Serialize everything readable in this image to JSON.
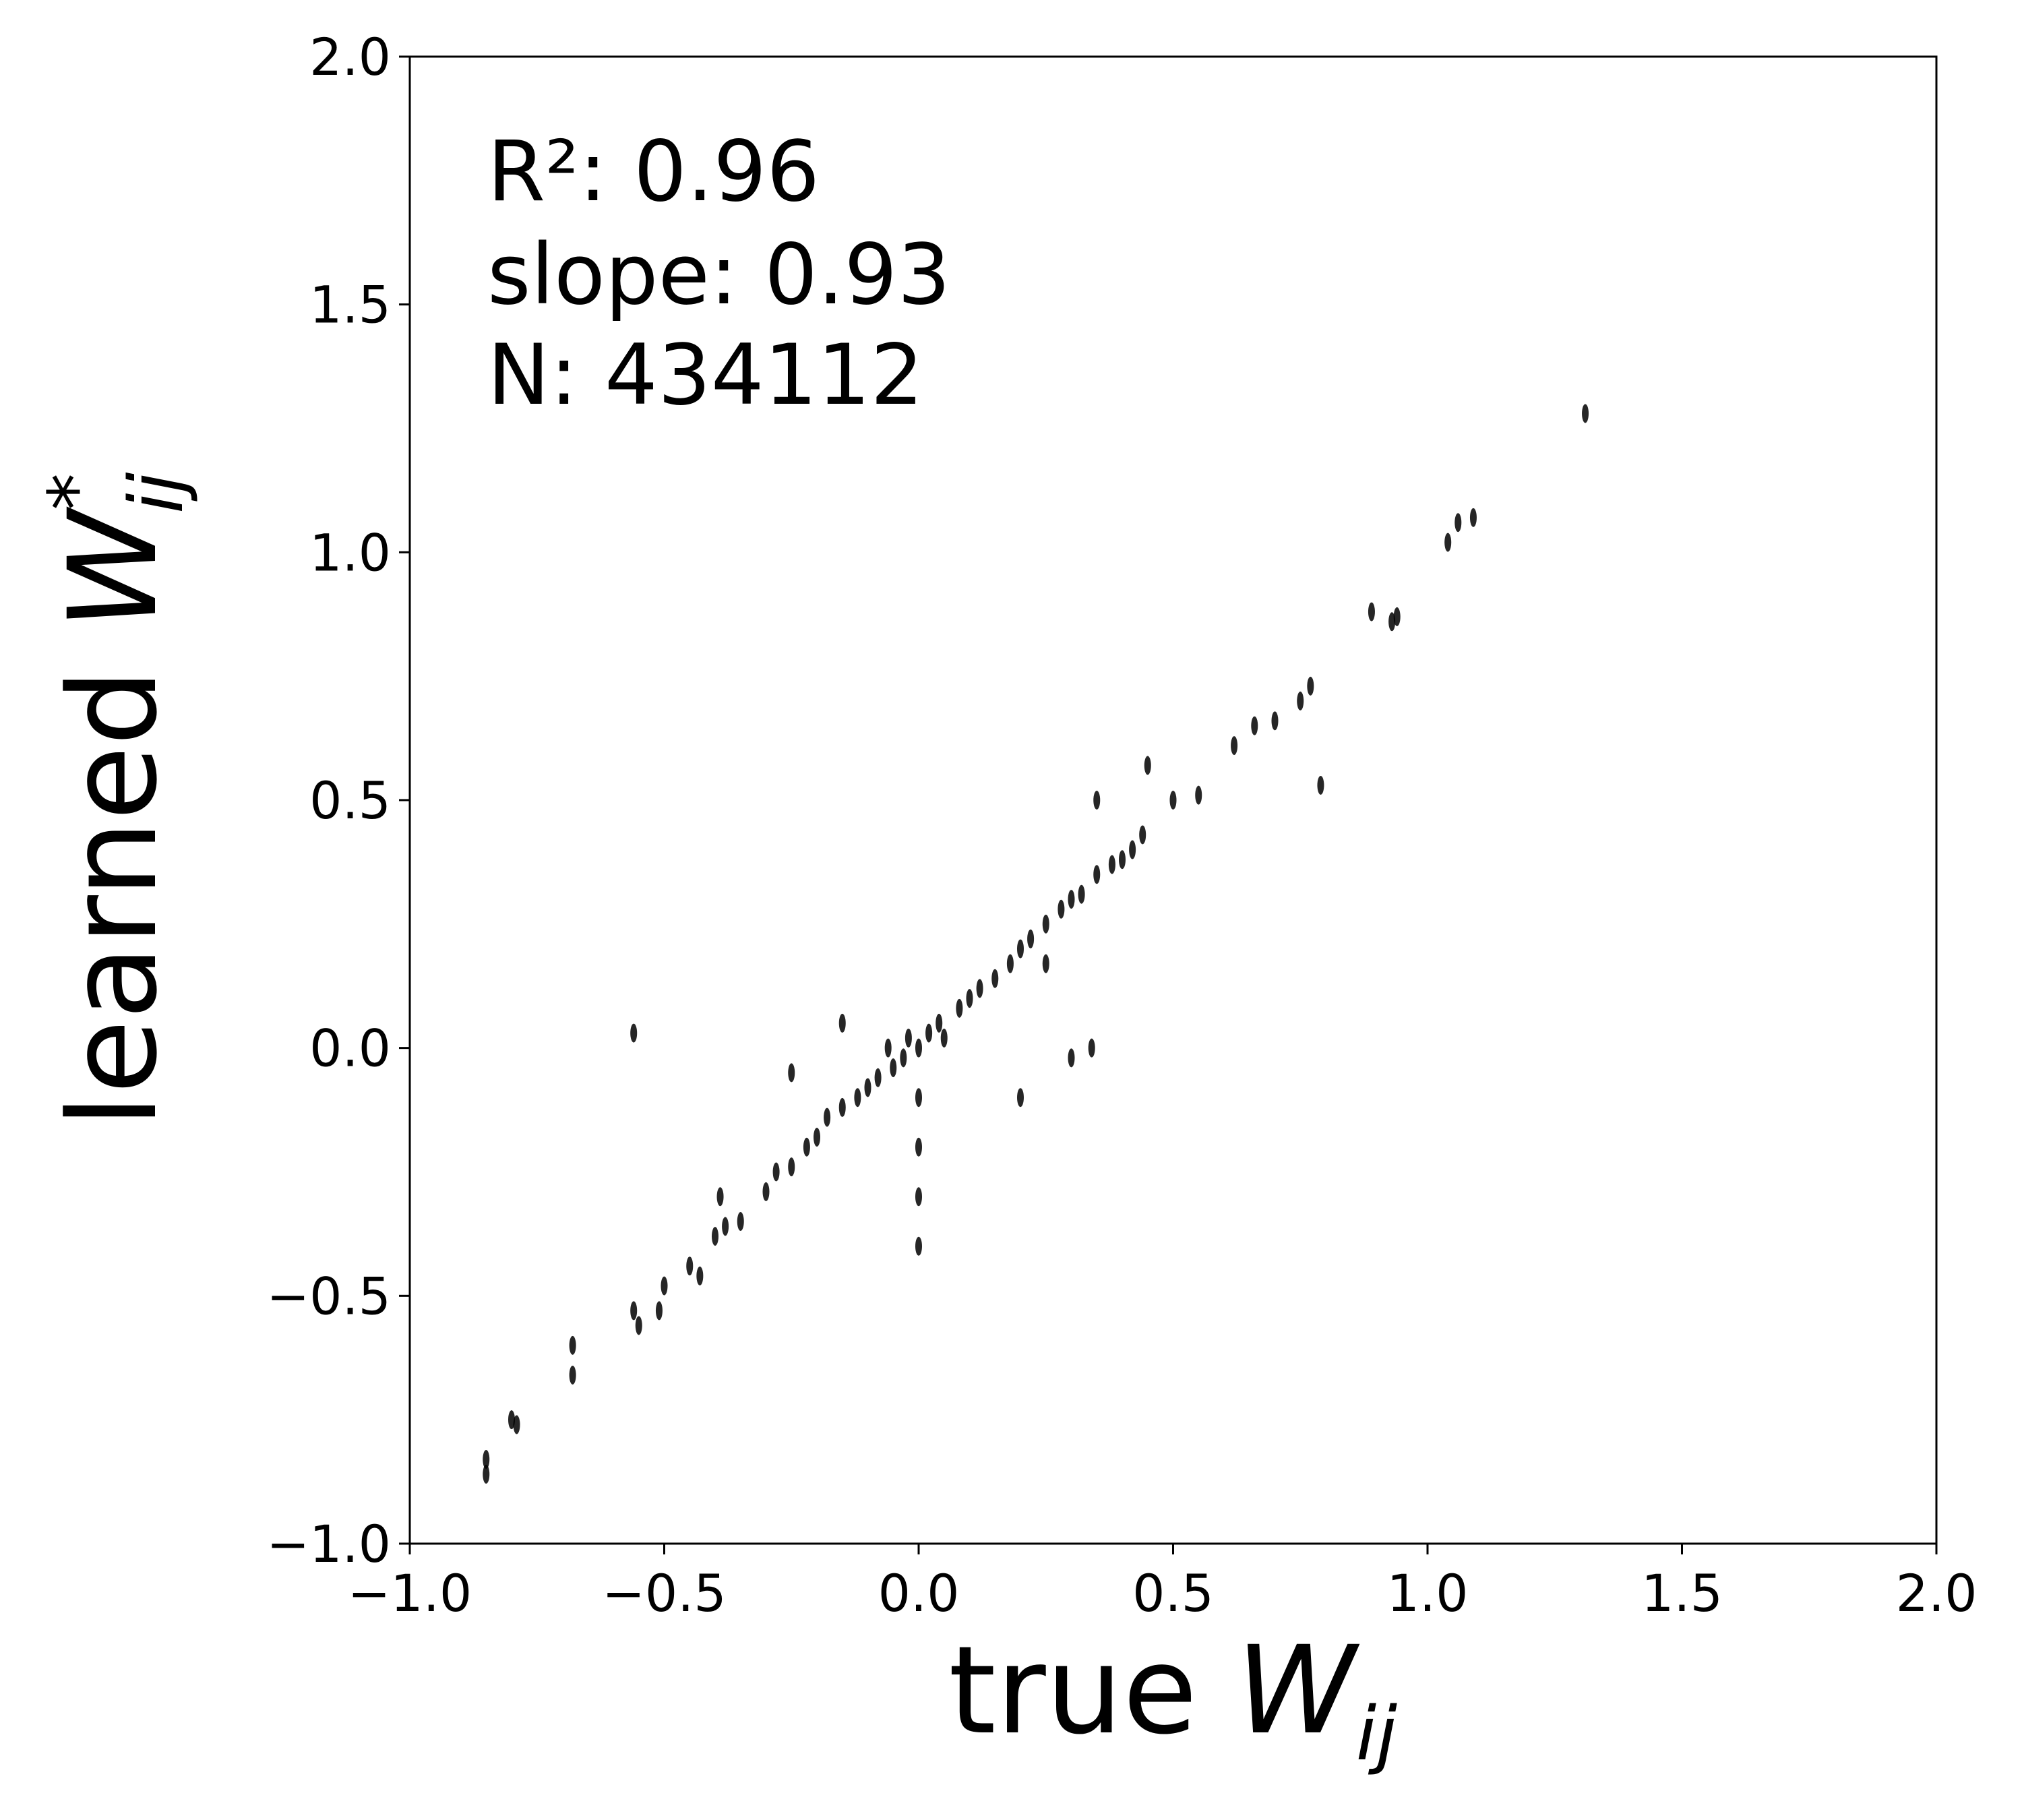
{
  "chart_data": {
    "type": "scatter",
    "annotations": [
      "R²: 0.96",
      "slope: 0.93",
      "N: 434112"
    ],
    "xlabel": {
      "prefix": "true",
      "symbol": "W",
      "subscript": "ij"
    },
    "ylabel": {
      "prefix": "learned",
      "symbol": "W",
      "superscript": "*",
      "subscript": "ij"
    },
    "xlim": [
      -1,
      2
    ],
    "ylim": [
      -1,
      2
    ],
    "xticks": [
      {
        "value": -1,
        "label": "−1.0"
      },
      {
        "value": -0.5,
        "label": "−0.5"
      },
      {
        "value": 0,
        "label": "0.0"
      },
      {
        "value": 0.5,
        "label": "0.5"
      },
      {
        "value": 1,
        "label": "1.0"
      },
      {
        "value": 1.5,
        "label": "1.5"
      },
      {
        "value": 2,
        "label": "2.0"
      }
    ],
    "yticks": [
      {
        "value": -1,
        "label": "−1.0"
      },
      {
        "value": -0.5,
        "label": "−0.5"
      },
      {
        "value": 0,
        "label": "0.0"
      },
      {
        "value": 0.5,
        "label": "0.5"
      },
      {
        "value": 1,
        "label": "1.0"
      },
      {
        "value": 1.5,
        "label": "1.5"
      },
      {
        "value": 2,
        "label": "2.0"
      }
    ],
    "color": "#000000",
    "x": [
      -0.85,
      -0.85,
      -0.8,
      -0.79,
      -0.68,
      -0.68,
      -0.56,
      -0.55,
      -0.51,
      -0.5,
      -0.45,
      -0.43,
      -0.4,
      -0.38,
      -0.35,
      -0.3,
      -0.28,
      -0.25,
      -0.22,
      -0.2,
      -0.18,
      -0.15,
      -0.12,
      -0.1,
      -0.08,
      -0.06,
      -0.05,
      -0.03,
      -0.02,
      0,
      0,
      0,
      0,
      0,
      0.02,
      0.04,
      0.05,
      0.08,
      0.1,
      0.12,
      0.15,
      0.18,
      0.2,
      0.22,
      0.25,
      0.28,
      0.3,
      0.32,
      0.35,
      0.38,
      0.4,
      0.42,
      0.44,
      0.45,
      0.5,
      0.55,
      0.62,
      0.66,
      0.7,
      0.75,
      0.77,
      0.79,
      0.89,
      0.93,
      0.94,
      1.04,
      1.06,
      1.09,
      1.31,
      -0.56,
      0.34,
      -0.39,
      0.2,
      0.3,
      -0.25,
      -0.15,
      0.25,
      0.35
    ],
    "y": [
      -0.83,
      -0.86,
      -0.75,
      -0.76,
      -0.6,
      -0.66,
      -0.53,
      -0.56,
      -0.53,
      -0.48,
      -0.44,
      -0.46,
      -0.38,
      -0.36,
      -0.35,
      -0.29,
      -0.25,
      -0.24,
      -0.2,
      -0.18,
      -0.14,
      -0.12,
      -0.1,
      -0.08,
      -0.06,
      0,
      -0.04,
      -0.02,
      0.02,
      0,
      -0.3,
      -0.4,
      -0.2,
      -0.1,
      0.03,
      0.05,
      0.02,
      0.08,
      0.1,
      0.12,
      0.14,
      0.17,
      0.2,
      0.22,
      0.25,
      0.28,
      0.3,
      0.31,
      0.35,
      0.37,
      0.38,
      0.4,
      0.43,
      0.57,
      0.5,
      0.51,
      0.61,
      0.65,
      0.66,
      0.7,
      0.73,
      0.53,
      0.88,
      0.86,
      0.87,
      1.02,
      1.06,
      1.07,
      1.28,
      0.03,
      0,
      -0.3,
      -0.1,
      -0.02,
      -0.05,
      0.05,
      0.17,
      0.5
    ]
  }
}
